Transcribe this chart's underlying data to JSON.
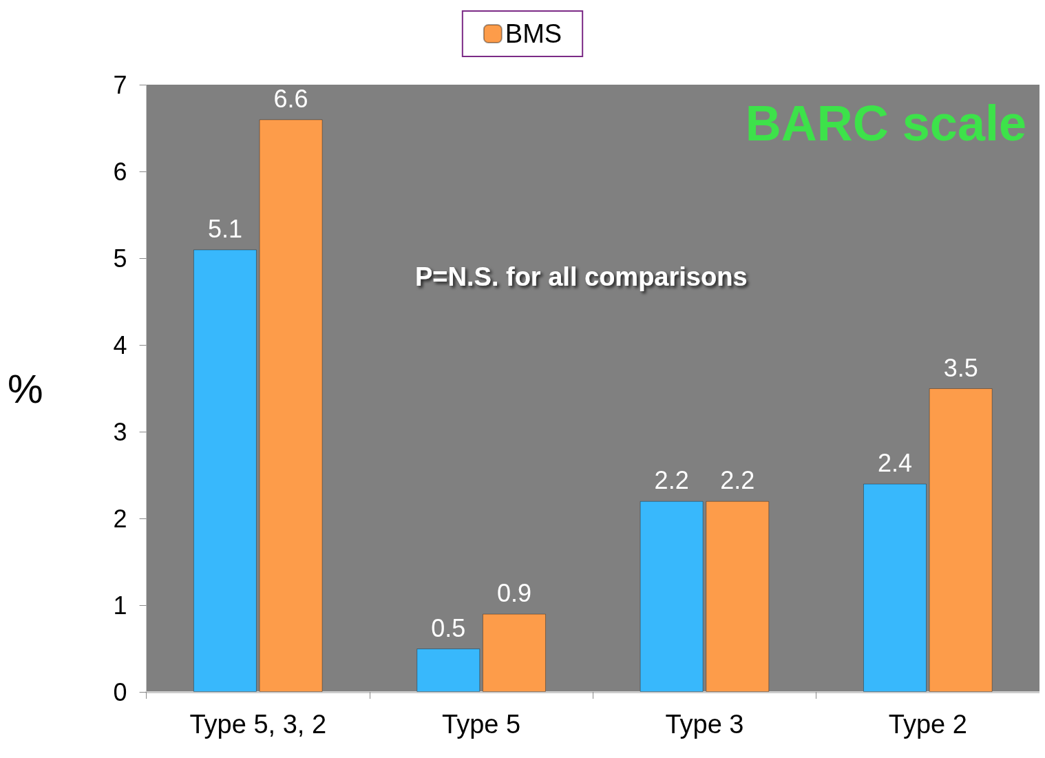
{
  "chart_data": {
    "type": "bar",
    "title": "BARC scale",
    "ylabel": "%",
    "annotations": [
      "P=N.S. for all comparisons"
    ],
    "categories": [
      "Type 5, 3, 2",
      "Type 5",
      "Type 3",
      "Type 2"
    ],
    "series": [
      {
        "color": "#38b8fc",
        "values": [
          5.1,
          0.5,
          2.2,
          2.4
        ]
      },
      {
        "name": "BMS",
        "color": "#fd9c4a",
        "values": [
          6.6,
          0.9,
          2.2,
          3.5
        ]
      }
    ],
    "ylim": [
      0,
      7
    ],
    "yticks": [
      0,
      1,
      2,
      3,
      4,
      5,
      6,
      7
    ],
    "data_labels": true,
    "legend": "top",
    "grid": false
  }
}
